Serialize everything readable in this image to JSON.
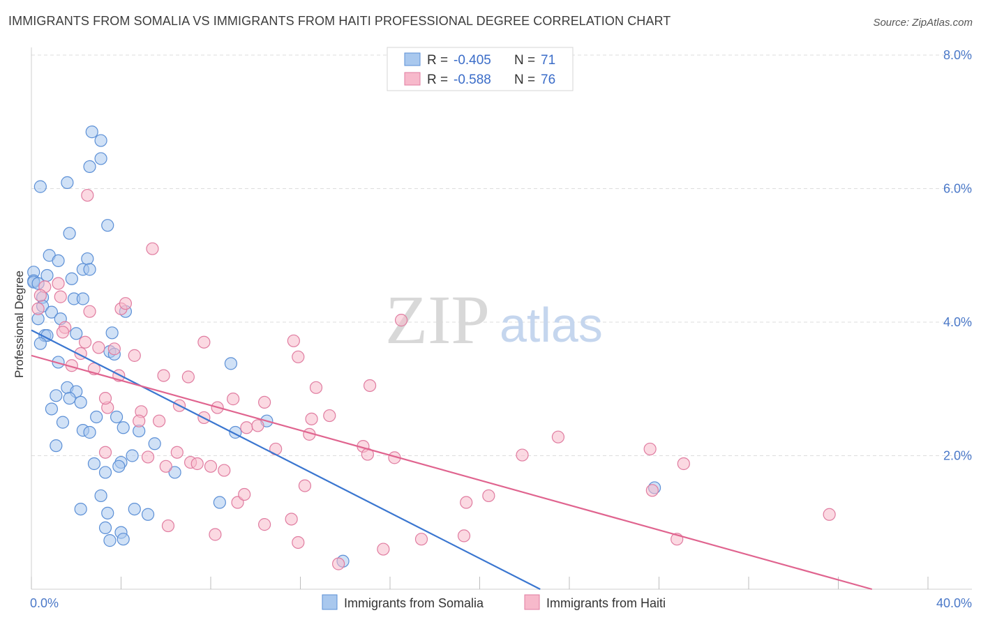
{
  "title": "IMMIGRANTS FROM SOMALIA VS IMMIGRANTS FROM HAITI PROFESSIONAL DEGREE CORRELATION CHART",
  "source": "Source: ZipAtlas.com",
  "watermark": {
    "zip": "ZIP",
    "atlas": "atlas"
  },
  "colors": {
    "somalia_fill": "#a9c8ee",
    "somalia_stroke": "#5b8fd6",
    "somalia_line": "#3a76d0",
    "haiti_fill": "#f7b9cb",
    "haiti_stroke": "#e07ca0",
    "haiti_line": "#e0648f",
    "tick_text": "#4a78c8",
    "grid": "#dddddd"
  },
  "stats": {
    "r_label": "R =",
    "n_label": "N =",
    "somalia": {
      "r": "-0.405",
      "n": "71"
    },
    "haiti": {
      "r": "-0.588",
      "n": "76"
    }
  },
  "chart_data": {
    "type": "scatter",
    "title": "IMMIGRANTS FROM SOMALIA VS IMMIGRANTS FROM HAITI PROFESSIONAL DEGREE CORRELATION CHART",
    "xlabel": "",
    "ylabel": "Professional Degree",
    "xlim": [
      0,
      40
    ],
    "ylim": [
      0,
      8.0
    ],
    "x_tick_labels": [
      {
        "value": 0,
        "label": "0.0%"
      },
      {
        "value": 40,
        "label": "40.0%"
      }
    ],
    "y_tick_labels": [
      {
        "value": 2,
        "label": "2.0%"
      },
      {
        "value": 4,
        "label": "4.0%"
      },
      {
        "value": 6,
        "label": "6.0%"
      },
      {
        "value": 8,
        "label": "8.0%"
      }
    ],
    "grid": true,
    "legend_position": "bottom-center",
    "series": [
      {
        "name": "Immigrants from Somalia",
        "color": "#a9c8ee",
        "trend": {
          "x1": 0,
          "y1": 3.88,
          "x2": 22.7,
          "y2": 0.0
        },
        "points": [
          [
            2.7,
            6.85
          ],
          [
            3.1,
            6.72
          ],
          [
            3.1,
            6.45
          ],
          [
            2.6,
            6.33
          ],
          [
            0.4,
            6.03
          ],
          [
            1.6,
            6.09
          ],
          [
            3.4,
            5.45
          ],
          [
            1.7,
            5.33
          ],
          [
            0.8,
            5.0
          ],
          [
            1.2,
            4.92
          ],
          [
            2.5,
            4.95
          ],
          [
            2.3,
            4.79
          ],
          [
            2.6,
            4.79
          ],
          [
            0.1,
            4.75
          ],
          [
            0.1,
            4.62
          ],
          [
            0.7,
            4.7
          ],
          [
            1.8,
            4.65
          ],
          [
            0.1,
            4.6
          ],
          [
            0.5,
            4.37
          ],
          [
            1.9,
            4.35
          ],
          [
            2.3,
            4.35
          ],
          [
            0.5,
            4.24
          ],
          [
            0.9,
            4.15
          ],
          [
            4.2,
            4.16
          ],
          [
            0.3,
            4.05
          ],
          [
            1.3,
            4.05
          ],
          [
            0.6,
            3.8
          ],
          [
            0.7,
            3.8
          ],
          [
            2.0,
            3.83
          ],
          [
            3.6,
            3.84
          ],
          [
            0.4,
            3.68
          ],
          [
            3.5,
            3.56
          ],
          [
            3.7,
            3.52
          ],
          [
            1.2,
            3.4
          ],
          [
            8.9,
            3.38
          ],
          [
            1.6,
            3.02
          ],
          [
            2.0,
            2.96
          ],
          [
            1.1,
            2.9
          ],
          [
            1.7,
            2.86
          ],
          [
            2.2,
            2.8
          ],
          [
            0.9,
            2.7
          ],
          [
            2.9,
            2.58
          ],
          [
            3.8,
            2.58
          ],
          [
            10.5,
            2.52
          ],
          [
            1.4,
            2.5
          ],
          [
            2.3,
            2.38
          ],
          [
            4.1,
            2.42
          ],
          [
            2.6,
            2.35
          ],
          [
            4.8,
            2.37
          ],
          [
            9.1,
            2.35
          ],
          [
            1.1,
            2.15
          ],
          [
            5.5,
            2.18
          ],
          [
            4.5,
            2.0
          ],
          [
            2.8,
            1.88
          ],
          [
            4.0,
            1.9
          ],
          [
            3.9,
            1.84
          ],
          [
            3.3,
            1.75
          ],
          [
            6.4,
            1.75
          ],
          [
            3.1,
            1.4
          ],
          [
            8.4,
            1.3
          ],
          [
            2.2,
            1.2
          ],
          [
            4.6,
            1.2
          ],
          [
            5.2,
            1.12
          ],
          [
            3.4,
            1.14
          ],
          [
            3.3,
            0.92
          ],
          [
            4.0,
            0.85
          ],
          [
            3.5,
            0.73
          ],
          [
            4.1,
            0.75
          ],
          [
            13.9,
            0.42
          ],
          [
            27.8,
            1.52
          ],
          [
            0.3,
            4.58
          ]
        ]
      },
      {
        "name": "Immigrants from Haiti",
        "color": "#f7b9cb",
        "trend": {
          "x1": 0,
          "y1": 3.5,
          "x2": 37.5,
          "y2": 0.0
        },
        "points": [
          [
            2.5,
            5.9
          ],
          [
            5.4,
            5.1
          ],
          [
            1.2,
            4.58
          ],
          [
            0.6,
            4.53
          ],
          [
            1.3,
            4.38
          ],
          [
            0.4,
            4.4
          ],
          [
            4.0,
            4.2
          ],
          [
            4.2,
            4.28
          ],
          [
            1.5,
            3.92
          ],
          [
            2.6,
            4.16
          ],
          [
            0.3,
            4.2
          ],
          [
            16.5,
            4.03
          ],
          [
            1.4,
            3.85
          ],
          [
            2.4,
            3.7
          ],
          [
            11.7,
            3.72
          ],
          [
            3.0,
            3.62
          ],
          [
            3.7,
            3.6
          ],
          [
            7.7,
            3.7
          ],
          [
            2.2,
            3.53
          ],
          [
            4.6,
            3.5
          ],
          [
            11.9,
            3.48
          ],
          [
            1.8,
            3.35
          ],
          [
            3.9,
            3.2
          ],
          [
            5.9,
            3.2
          ],
          [
            7.0,
            3.18
          ],
          [
            12.7,
            3.02
          ],
          [
            15.1,
            3.05
          ],
          [
            9.0,
            2.85
          ],
          [
            3.4,
            2.72
          ],
          [
            6.6,
            2.75
          ],
          [
            10.4,
            2.8
          ],
          [
            8.3,
            2.72
          ],
          [
            4.9,
            2.66
          ],
          [
            12.5,
            2.55
          ],
          [
            13.3,
            2.6
          ],
          [
            7.7,
            2.57
          ],
          [
            5.7,
            2.52
          ],
          [
            4.8,
            2.52
          ],
          [
            9.6,
            2.42
          ],
          [
            10.1,
            2.45
          ],
          [
            12.4,
            2.32
          ],
          [
            23.5,
            2.28
          ],
          [
            14.8,
            2.14
          ],
          [
            3.3,
            2.05
          ],
          [
            6.5,
            2.05
          ],
          [
            15.0,
            2.02
          ],
          [
            10.9,
            2.1
          ],
          [
            16.2,
            1.97
          ],
          [
            21.9,
            2.01
          ],
          [
            27.6,
            2.1
          ],
          [
            5.2,
            1.98
          ],
          [
            7.1,
            1.9
          ],
          [
            7.4,
            1.88
          ],
          [
            8.0,
            1.84
          ],
          [
            8.6,
            1.78
          ],
          [
            29.1,
            1.88
          ],
          [
            6.0,
            1.84
          ],
          [
            9.2,
            1.3
          ],
          [
            12.2,
            1.55
          ],
          [
            9.5,
            1.42
          ],
          [
            19.4,
            1.3
          ],
          [
            20.4,
            1.4
          ],
          [
            27.7,
            1.48
          ],
          [
            11.6,
            1.05
          ],
          [
            10.4,
            0.97
          ],
          [
            6.1,
            0.95
          ],
          [
            8.2,
            0.82
          ],
          [
            11.9,
            0.7
          ],
          [
            19.3,
            0.8
          ],
          [
            17.4,
            0.75
          ],
          [
            28.8,
            0.75
          ],
          [
            15.7,
            0.6
          ],
          [
            13.7,
            0.38
          ],
          [
            35.6,
            1.12
          ],
          [
            3.3,
            2.86
          ],
          [
            2.8,
            3.3
          ]
        ]
      }
    ]
  },
  "legend": {
    "somalia": "Immigrants from Somalia",
    "haiti": "Immigrants from Haiti"
  }
}
